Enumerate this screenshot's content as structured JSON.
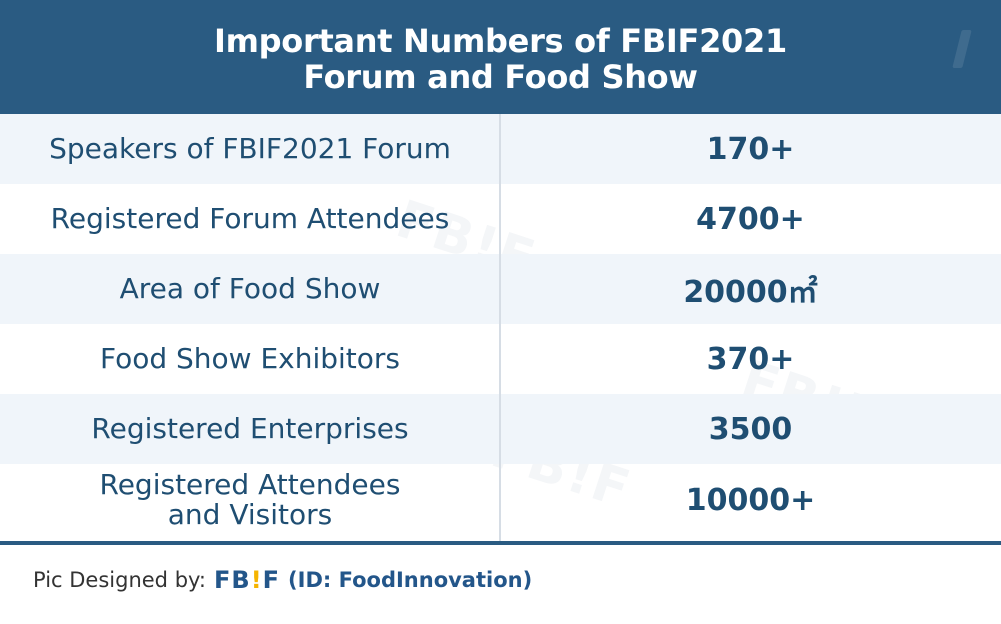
{
  "header": {
    "title_line1": "Important Numbers of FBIF2021",
    "title_line2": "Forum and Food Show"
  },
  "rows": [
    {
      "label": "Speakers of FBIF2021 Forum",
      "value": "170+"
    },
    {
      "label": "Registered Forum Attendees",
      "value": "4700+"
    },
    {
      "label": "Area of Food Show",
      "value": "20000㎡"
    },
    {
      "label": "Food Show Exhibitors",
      "value": "370+"
    },
    {
      "label": "Registered Enterprises",
      "value": "3500"
    },
    {
      "label_line1": "Registered Attendees",
      "label_line2": "and Visitors",
      "value": "10000+"
    }
  ],
  "footer": {
    "prefix": "Pic Designed by:",
    "brand_left": "FB",
    "brand_bang": "!",
    "brand_right": "F",
    "id_text": "(ID: FoodInnovation)"
  },
  "watermark": {
    "brand_left": "FB",
    "brand_bang": "!",
    "brand_right": "F"
  },
  "colors": {
    "header_bg": "#2a5b82",
    "text_primary": "#1f4e72",
    "row_shade": "#f0f5fa",
    "accent_yellow": "#f5b400"
  }
}
